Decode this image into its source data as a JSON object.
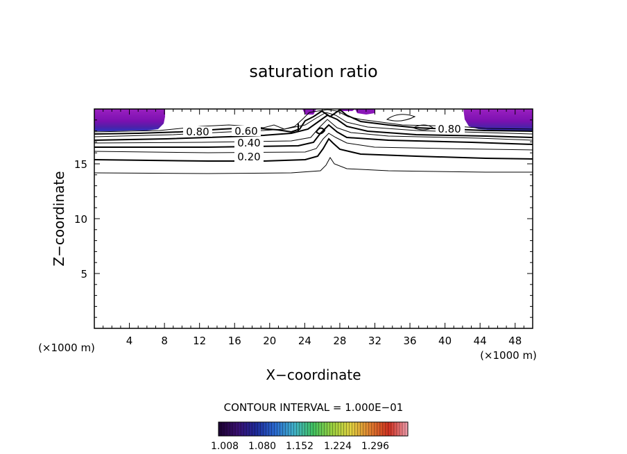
{
  "chart_data": {
    "type": "contour",
    "title": "saturation ratio",
    "xlabel": "X−coordinate",
    "ylabel": "Z−coordinate",
    "x_unit_left": "(×1000 m)",
    "x_unit_right": "(×1000 m)",
    "xlim": [
      0,
      50
    ],
    "ylim": [
      0,
      20
    ],
    "x_ticks": [
      "4",
      "8",
      "12",
      "16",
      "20",
      "24",
      "28",
      "32",
      "36",
      "40",
      "44",
      "48"
    ],
    "x_tick_values": [
      4,
      8,
      12,
      16,
      20,
      24,
      28,
      32,
      36,
      40,
      44,
      48
    ],
    "y_ticks": [
      "5",
      "10",
      "15"
    ],
    "y_tick_values": [
      5,
      10,
      15
    ],
    "contour_interval_text": "CONTOUR INTERVAL = 1.000E−01",
    "contour_labels": [
      {
        "text": "0.80",
        "x": 11.5,
        "z": 17.9
      },
      {
        "text": "0.60",
        "x": 17.2,
        "z": 17.8
      },
      {
        "text": "0.40",
        "x": 17.7,
        "z": 16.8
      },
      {
        "text": "0.20",
        "x": 17.7,
        "z": 15.6
      },
      {
        "text": "0.80",
        "x": 40.0,
        "z": 18.1
      }
    ],
    "colorbar": {
      "ticks": [
        "1.008",
        "1.080",
        "1.152",
        "1.224",
        "1.296"
      ],
      "colors": [
        "#1a0030",
        "#3a1070",
        "#1d2a9a",
        "#2a6ad0",
        "#40b0c8",
        "#40c060",
        "#9ad040",
        "#e0d040",
        "#e08030",
        "#d03020",
        "#f0a0b0"
      ]
    },
    "supersaturated_regions": [
      {
        "x_range": [
          0,
          8
        ],
        "z_range": [
          18.2,
          20
        ]
      },
      {
        "x_range": [
          42,
          50
        ],
        "z_range": [
          18.2,
          20
        ]
      }
    ],
    "colors": {
      "fill_dark": "#4a0080",
      "fill_mid": "#7a10b0",
      "fill_top": "#9b20c0",
      "fill_low": "#3030c0"
    }
  }
}
